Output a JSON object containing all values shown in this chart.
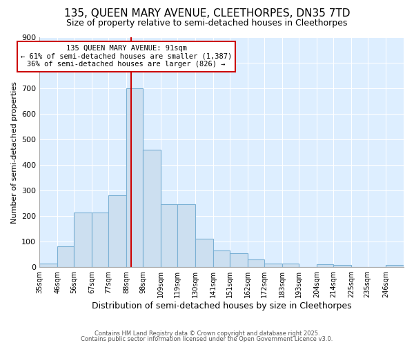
{
  "title1": "135, QUEEN MARY AVENUE, CLEETHORPES, DN35 7TD",
  "title2": "Size of property relative to semi-detached houses in Cleethorpes",
  "xlabel": "Distribution of semi-detached houses by size in Cleethorpes",
  "ylabel": "Number of semi-detached properties",
  "annotation_line1": "135 QUEEN MARY AVENUE: 91sqm",
  "annotation_line2": "← 61% of semi-detached houses are smaller (1,387)",
  "annotation_line3": "36% of semi-detached houses are larger (826) →",
  "property_size": 91,
  "red_line_x": 91,
  "categories": [
    "35sqm",
    "46sqm",
    "56sqm",
    "67sqm",
    "77sqm",
    "88sqm",
    "98sqm",
    "109sqm",
    "119sqm",
    "130sqm",
    "141sqm",
    "151sqm",
    "162sqm",
    "172sqm",
    "183sqm",
    "193sqm",
    "204sqm",
    "214sqm",
    "225sqm",
    "235sqm",
    "246sqm"
  ],
  "bin_edges": [
    35,
    46,
    56,
    67,
    77,
    88,
    98,
    109,
    119,
    130,
    141,
    151,
    162,
    172,
    183,
    193,
    204,
    214,
    225,
    235,
    246,
    257
  ],
  "values": [
    15,
    80,
    215,
    215,
    280,
    700,
    460,
    245,
    245,
    110,
    65,
    55,
    30,
    15,
    15,
    0,
    10,
    8,
    0,
    0,
    8
  ],
  "bar_color": "#ccdff0",
  "bar_edge_color": "#7ab0d4",
  "red_line_color": "#cc0000",
  "plot_bg_color": "#ddeeff",
  "fig_bg_color": "#ffffff",
  "grid_color": "#ffffff",
  "footer_line1": "Contains HM Land Registry data © Crown copyright and database right 2025.",
  "footer_line2": "Contains public sector information licensed under the Open Government Licence v3.0.",
  "yticks": [
    0,
    100,
    200,
    300,
    400,
    500,
    600,
    700,
    800,
    900
  ],
  "ylim": [
    0,
    900
  ]
}
